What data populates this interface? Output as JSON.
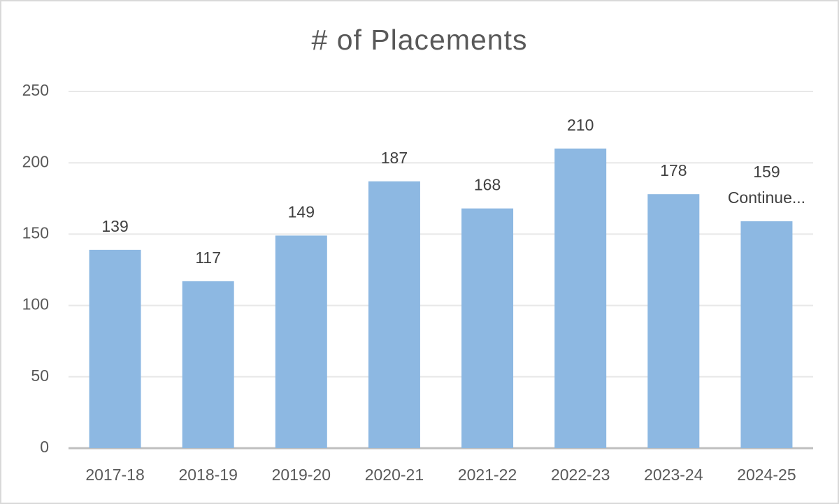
{
  "chart_data": {
    "type": "bar",
    "title": "# of Placements",
    "categories": [
      "2017-18",
      "2018-19",
      "2019-20",
      "2020-21",
      "2021-22",
      "2022-23",
      "2023-24",
      "2024-25"
    ],
    "values": [
      139,
      117,
      149,
      187,
      168,
      210,
      178,
      159
    ],
    "annotation": "Continue...",
    "color": "#8db8e2",
    "ylim": [
      0,
      250
    ],
    "yticks": [
      0,
      50,
      100,
      150,
      200,
      250
    ],
    "grid": true
  }
}
